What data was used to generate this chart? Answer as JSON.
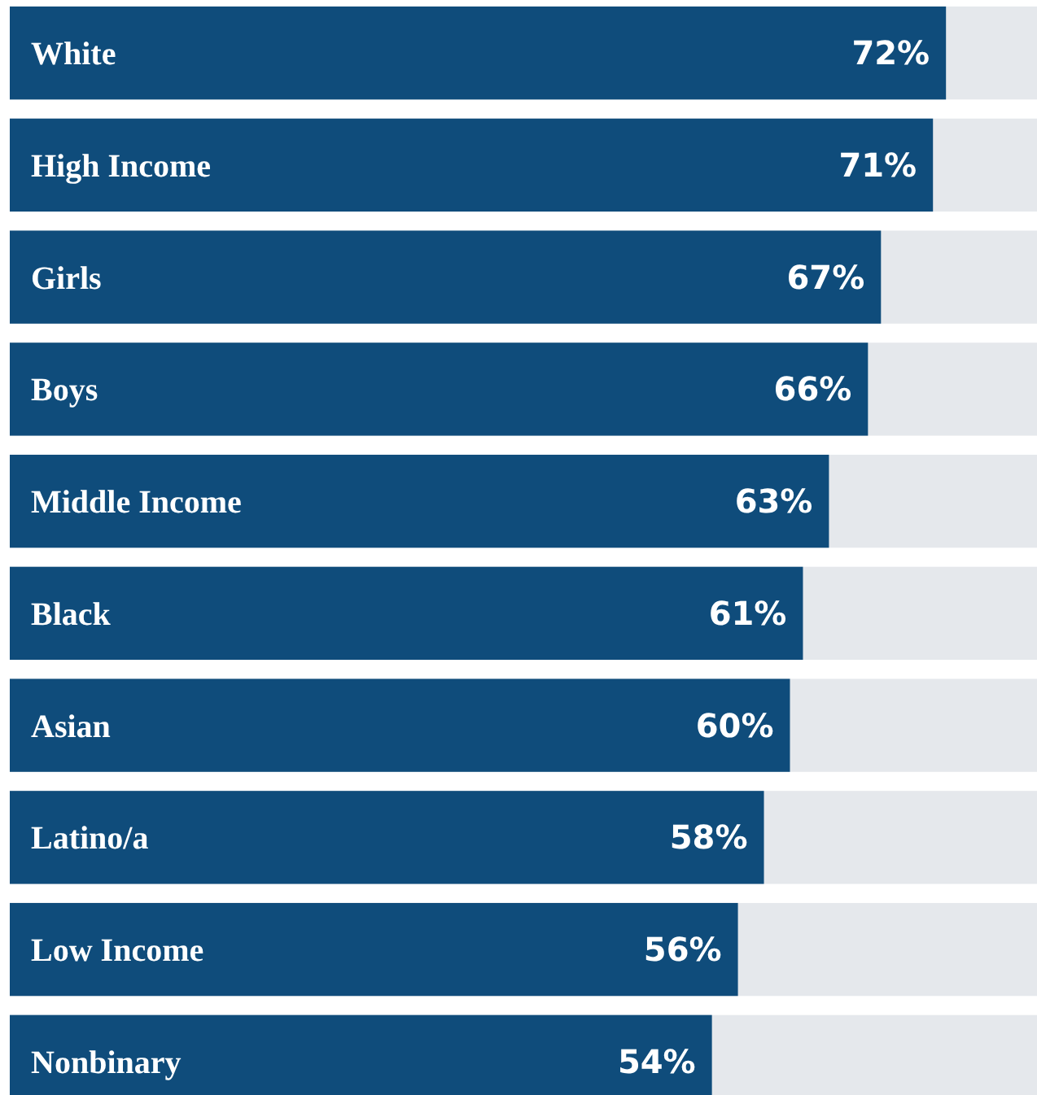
{
  "chart_data": {
    "type": "bar",
    "orientation": "horizontal",
    "categories": [
      "White",
      "High Income",
      "Girls",
      "Boys",
      "Middle Income",
      "Black",
      "Asian",
      "Latino/a",
      "Low Income",
      "Nonbinary"
    ],
    "values": [
      72,
      71,
      67,
      66,
      63,
      61,
      60,
      58,
      56,
      54
    ],
    "value_labels": [
      "72%",
      "71%",
      "67%",
      "66%",
      "63%",
      "61%",
      "60%",
      "58%",
      "56%",
      "54%"
    ],
    "color": "#0f4c7b",
    "xlim": [
      0,
      79
    ]
  }
}
